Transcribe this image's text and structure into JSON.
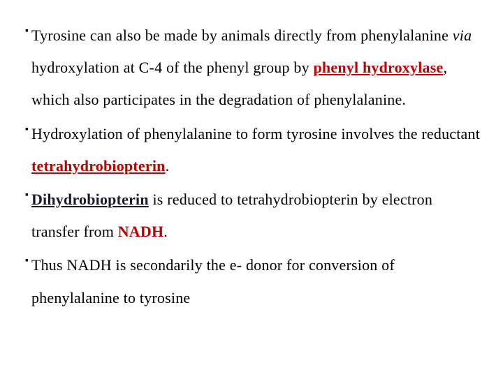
{
  "typography": {
    "font_family": "Georgia, Times New Roman, serif",
    "font_size_pt": 22,
    "line_height": 2.1,
    "text_color": "#000000",
    "emphasis_color": "#c00000",
    "dark_emphasis_color": "#1a1a2e",
    "background_color": "#ffffff"
  },
  "bullets": {
    "marker": "▪",
    "items": [
      {
        "p1": "Tyrosine can also be made by animals directly from phenylalanine ",
        "p2_italic": "via ",
        "p3": "hydroxylation at C-4 of the phenyl group by ",
        "p4_red_u": "phenyl hydroxylase",
        "p5": ", which also participates in the degradation of phenylalanine."
      },
      {
        "p1": "Hydroxylation of phenylalanine to form tyrosine involves the reductant ",
        "p2_red_u": "tetrahydrobiopterin",
        "p3": "."
      },
      {
        "p1_dark_u": "Dihydrobiopterin",
        "p2": " is reduced to tetrahydrobiopterin by electron transfer from ",
        "p3_red": "NADH",
        "p4": "."
      },
      {
        "p1": "Thus NADH is secondarily the e- donor for conversion of phenylalanine to tyrosine"
      }
    ]
  }
}
